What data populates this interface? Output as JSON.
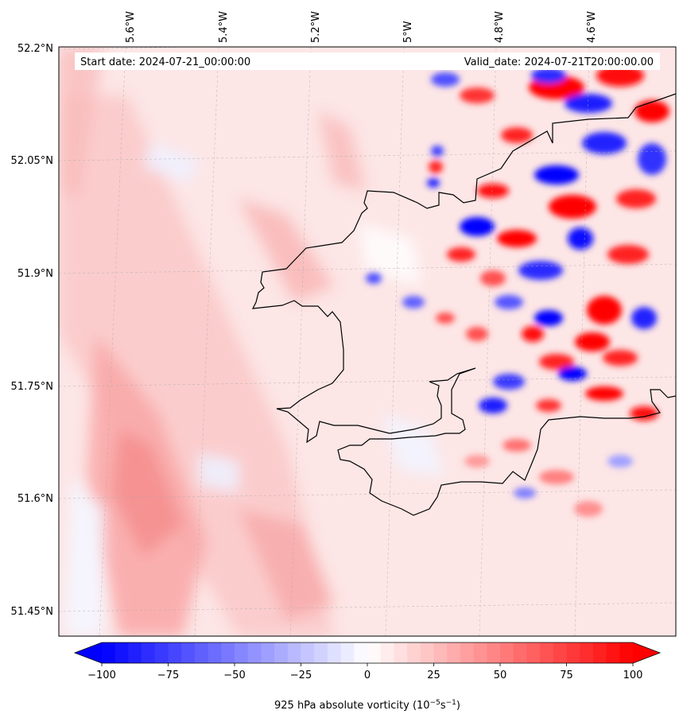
{
  "map": {
    "start_label": "Start date: 2024-07-21_00:00:00",
    "valid_label": "Valid_date: 2024-07-21T20:00:00.00",
    "longitude_labels": [
      "5.6°W",
      "5.4°W",
      "5.2°W",
      "5°W",
      "4.8°W",
      "4.6°W"
    ],
    "latitude_labels": [
      "52.2°N",
      "52.05°N",
      "51.9°N",
      "51.75°N",
      "51.6°N",
      "51.45°N"
    ],
    "field": "925 hPa absolute vorticity",
    "colors": {
      "negative": "#0000ff",
      "positive": "#ff0000",
      "neutral": "#ffffff",
      "coastline": "#000000"
    }
  },
  "colorbar": {
    "ticks": [
      "−100",
      "−75",
      "−50",
      "−25",
      "0",
      "25",
      "50",
      "75",
      "100"
    ],
    "label_prefix": "925 hPa absolute vorticity (10",
    "label_exp1": "−5",
    "label_mid": "s",
    "label_exp2": "−1",
    "label_suffix": ")",
    "min": -100,
    "max": 100,
    "levels": 40,
    "extend": "both",
    "cmap": "bwr"
  }
}
